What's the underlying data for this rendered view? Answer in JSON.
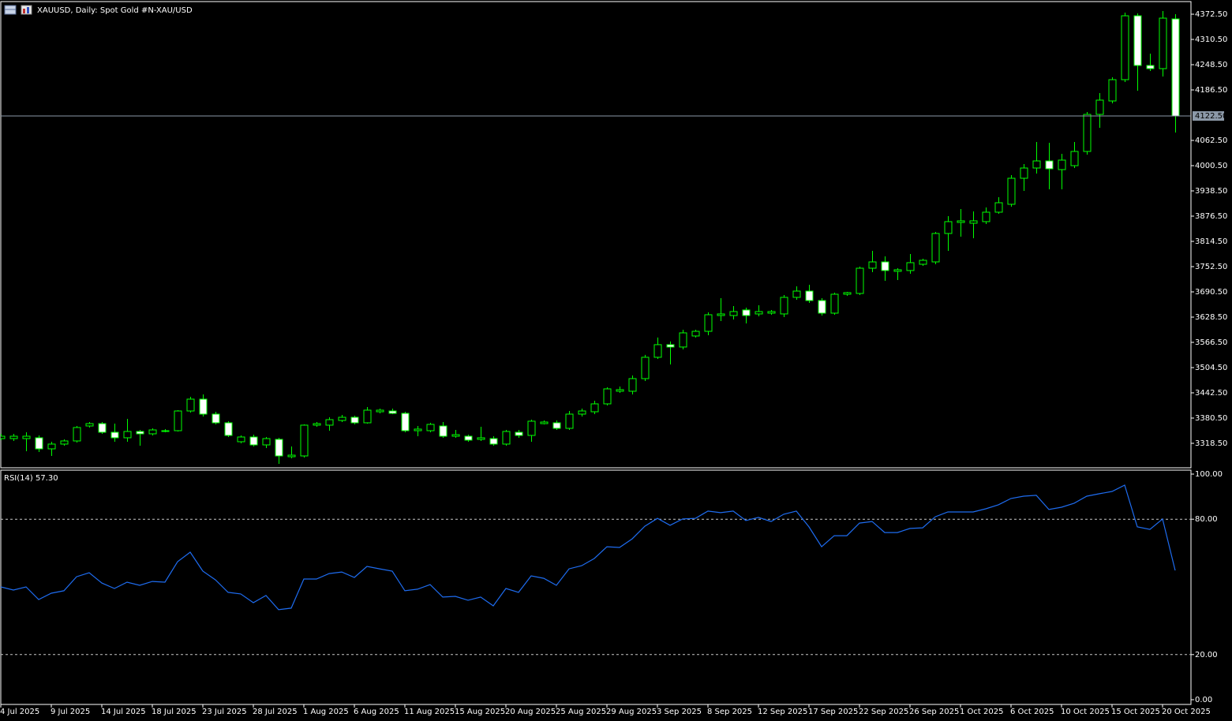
{
  "chart_data": [
    {
      "type": "candlestick",
      "title": "XAUUSD, Daily:  Spot Gold #N-XAU/USD",
      "categories": [
        "4 Jul 2025",
        null,
        null,
        null,
        "9 Jul 2025",
        null,
        null,
        null,
        "14 Jul 2025",
        null,
        null,
        null,
        "18 Jul 2025",
        null,
        null,
        null,
        "23 Jul 2025",
        null,
        null,
        null,
        "28 Jul 2025",
        null,
        null,
        null,
        "1 Aug 2025",
        null,
        null,
        null,
        "6 Aug 2025",
        null,
        null,
        null,
        "11 Aug 2025",
        null,
        null,
        null,
        "15 Aug 2025",
        null,
        null,
        null,
        "20 Aug 2025",
        null,
        null,
        null,
        "25 Aug 2025",
        null,
        null,
        null,
        "29 Aug 2025",
        null,
        null,
        null,
        "3 Sep 2025",
        null,
        null,
        null,
        "8 Sep 2025",
        null,
        null,
        null,
        "12 Sep 2025",
        null,
        null,
        null,
        "17 Sep 2025",
        null,
        null,
        null,
        "22 Sep 2025",
        null,
        null,
        null,
        "26 Sep 2025",
        null,
        null,
        null,
        "1 Oct 2025",
        null,
        null,
        null,
        "6 Oct 2025",
        null,
        null,
        null,
        "10 Oct 2025",
        null,
        null,
        null,
        "15 Oct 2025",
        null,
        null,
        null,
        "20 Oct 2025",
        null
      ],
      "open": [
        3330.1,
        3330.1,
        3330.1,
        3332.1,
        3304.9,
        3316.6,
        3324.3,
        3361.1,
        3366.9,
        3345.6,
        3332.1,
        3347.6,
        3341.8,
        3347.6,
        3349.5,
        3397.9,
        3427.0,
        3390.2,
        3368.9,
        3322.4,
        3334.0,
        3314.6,
        3328.2,
        3285.6,
        3287.5,
        3363.1,
        3363.1,
        3374.7,
        3382.4,
        3368.9,
        3396.0,
        3397.9,
        3392.1,
        3349.5,
        3349.5,
        3361.1,
        3335.9,
        3335.9,
        3328.2,
        3330.1,
        3316.6,
        3345.6,
        3337.9,
        3366.9,
        3368.9,
        3355.3,
        3390.2,
        3396.0,
        3415.4,
        3446.4,
        3446.4,
        3477.4,
        3529.8,
        3560.8,
        3555.0,
        3582.1,
        3593.6,
        3632.4,
        3632.4,
        3646.0,
        3636.3,
        3638.2,
        3636.3,
        3677.0,
        3692.4,
        3669.2,
        3638.2,
        3684.7,
        3686.6,
        3748.6,
        3764.1,
        3740.9,
        3742.9,
        3758.3,
        3764.1,
        3833.9,
        3861.0,
        3859.1,
        3863.0,
        3886.2,
        3905.6,
        3969.5,
        3994.7,
        4012.1,
        3990.8,
        4000.5,
        4035.4,
        4126.4,
        4159.4,
        4211.7,
        4368.6,
        4246.6,
        4238.8,
        4360.9
      ],
      "high": [
        3341.8,
        3341.8,
        3345.6,
        3337.9,
        3322.4,
        3328.2,
        3361.1,
        3370.8,
        3370.8,
        3366.9,
        3378.6,
        3351.4,
        3355.3,
        3353.4,
        3399.9,
        3432.8,
        3438.6,
        3396.0,
        3372.8,
        3337.9,
        3339.8,
        3334.0,
        3332.1,
        3310.8,
        3365.0,
        3370.8,
        3382.4,
        3388.3,
        3386.3,
        3407.6,
        3403.8,
        3403.8,
        3396.0,
        3361.1,
        3368.9,
        3370.8,
        3351.4,
        3339.8,
        3359.2,
        3335.9,
        3351.4,
        3351.4,
        3376.6,
        3374.7,
        3374.7,
        3397.9,
        3403.8,
        3423.1,
        3456.1,
        3458.0,
        3485.1,
        3535.6,
        3578.3,
        3568.6,
        3597.5,
        3597.5,
        3640.1,
        3675.0,
        3655.6,
        3651.8,
        3657.6,
        3646.0,
        3682.8,
        3704.1,
        3708.0,
        3675.0,
        3688.6,
        3690.5,
        3752.5,
        3791.3,
        3777.7,
        3748.6,
        3783.5,
        3771.9,
        3837.8,
        3876.5,
        3894.0,
        3888.1,
        3897.8,
        3923.0,
        3977.3,
        4004.4,
        4058.6,
        4056.7,
        4029.6,
        4058.6,
        4132.3,
        4178.8,
        4217.6,
        4376.4,
        4374.4,
        4275.6,
        4380.3,
        4372.5
      ],
      "low": [
        3326.3,
        3324.3,
        3299.1,
        3297.2,
        3287.5,
        3312.7,
        3320.4,
        3357.3,
        3341.8,
        3322.4,
        3322.4,
        3312.7,
        3337.9,
        3345.6,
        3347.6,
        3394.1,
        3384.4,
        3365.0,
        3334.0,
        3318.5,
        3310.8,
        3306.9,
        3268.1,
        3281.7,
        3283.6,
        3359.2,
        3349.5,
        3370.8,
        3365.0,
        3366.9,
        3392.1,
        3390.2,
        3345.6,
        3335.9,
        3345.6,
        3332.1,
        3332.1,
        3322.4,
        3324.3,
        3312.7,
        3312.7,
        3332.1,
        3322.4,
        3365.0,
        3351.4,
        3351.4,
        3384.4,
        3390.2,
        3411.5,
        3442.5,
        3438.6,
        3471.6,
        3525.9,
        3512.3,
        3549.2,
        3578.3,
        3584.0,
        3618.8,
        3622.7,
        3613.0,
        3630.4,
        3634.3,
        3628.5,
        3671.1,
        3663.4,
        3632.4,
        3634.3,
        3680.8,
        3682.8,
        3739.0,
        3717.6,
        3719.6,
        3735.1,
        3754.4,
        3758.3,
        3791.3,
        3826.1,
        3822.3,
        3857.1,
        3882.3,
        3899.8,
        3938.5,
        3981.1,
        3942.4,
        3942.4,
        3994.7,
        4027.6,
        4093.5,
        4153.6,
        4205.9,
        4184.6,
        4233.0,
        4219.4,
        4081.9
      ],
      "close": [
        3335.9,
        3335.9,
        3335.9,
        3304.9,
        3316.6,
        3324.3,
        3357.3,
        3366.9,
        3345.6,
        3332.1,
        3347.6,
        3341.8,
        3351.4,
        3349.5,
        3397.9,
        3427.0,
        3390.2,
        3368.9,
        3337.9,
        3334.0,
        3314.6,
        3330.1,
        3287.5,
        3289.4,
        3363.1,
        3366.9,
        3376.6,
        3382.4,
        3368.9,
        3399.9,
        3399.9,
        3392.1,
        3349.5,
        3353.4,
        3365.0,
        3335.9,
        3339.8,
        3326.3,
        3332.1,
        3316.6,
        3347.6,
        3337.9,
        3372.8,
        3370.8,
        3355.3,
        3390.2,
        3397.9,
        3415.4,
        3452.2,
        3450.3,
        3477.4,
        3529.8,
        3560.8,
        3555.0,
        3589.8,
        3593.6,
        3634.3,
        3636.3,
        3642.1,
        3632.4,
        3642.1,
        3642.1,
        3677.0,
        3692.4,
        3669.2,
        3638.2,
        3684.7,
        3688.6,
        3748.6,
        3764.1,
        3742.9,
        3744.8,
        3762.2,
        3768.0,
        3833.9,
        3863.0,
        3864.9,
        3864.9,
        3886.2,
        3909.4,
        3969.5,
        3994.7,
        4012.1,
        3992.8,
        4014.1,
        4035.4,
        4126.4,
        4161.4,
        4211.7,
        4368.6,
        4246.6,
        4238.8,
        4362.8,
        4122.5
      ],
      "ylim": [
        3258.4,
        4403.5
      ],
      "yticks": [
        {
          "value": 3318.5,
          "label": "3318.50"
        },
        {
          "value": 3380.5,
          "label": "3380.50"
        },
        {
          "value": 3442.5,
          "label": "3442.50"
        },
        {
          "value": 3504.5,
          "label": "3504.50"
        },
        {
          "value": 3566.5,
          "label": "3566.50"
        },
        {
          "value": 3628.5,
          "label": "3628.50"
        },
        {
          "value": 3690.5,
          "label": "3690.50"
        },
        {
          "value": 3752.5,
          "label": "3752.50"
        },
        {
          "value": 3814.5,
          "label": "3814.50"
        },
        {
          "value": 3876.5,
          "label": "3876.50"
        },
        {
          "value": 3938.5,
          "label": "3938.50"
        },
        {
          "value": 4000.5,
          "label": "4000.50"
        },
        {
          "value": 4062.5,
          "label": "4062.50"
        },
        {
          "value": 4186.5,
          "label": "4186.50"
        },
        {
          "value": 4248.5,
          "label": "4248.50"
        },
        {
          "value": 4310.5,
          "label": "4310.50"
        },
        {
          "value": 4372.5,
          "label": "4372.50"
        }
      ],
      "last_price": {
        "value": 4122.5,
        "label": "4122.50"
      },
      "up_color": "#00ff00",
      "down_color": "#ffffff"
    },
    {
      "type": "line",
      "title": "RSI(14) 57.30",
      "values": [
        50.0,
        48.6,
        50.0,
        44.4,
        47.2,
        48.3,
        54.5,
        56.3,
        51.7,
        49.3,
        52.1,
        50.7,
        52.4,
        52.1,
        61.2,
        65.4,
        57.0,
        53.1,
        47.6,
        46.9,
        43.0,
        46.2,
        39.9,
        40.6,
        53.5,
        53.5,
        55.9,
        56.6,
        54.2,
        59.1,
        58.0,
        57.0,
        48.3,
        49.0,
        51.0,
        45.5,
        45.8,
        44.1,
        45.5,
        41.6,
        49.3,
        47.6,
        54.9,
        53.8,
        50.7,
        58.0,
        59.4,
        62.6,
        67.8,
        67.5,
        71.3,
        76.9,
        80.4,
        77.3,
        80.1,
        80.4,
        83.6,
        82.9,
        83.6,
        79.4,
        80.8,
        79.0,
        82.2,
        83.6,
        76.6,
        67.8,
        72.7,
        72.7,
        78.3,
        79.0,
        74.1,
        74.1,
        75.9,
        76.2,
        81.1,
        83.2,
        83.2,
        83.2,
        84.6,
        86.4,
        89.2,
        90.2,
        90.6,
        84.3,
        85.3,
        87.1,
        90.2,
        91.3,
        92.3,
        95.1,
        76.6,
        75.5,
        80.1,
        57.3
      ],
      "color": "#1e6cf0",
      "ylim": [
        0,
        100
      ],
      "yticks": [
        {
          "value": 0,
          "label": "0.00"
        },
        {
          "value": 20,
          "label": "20.00"
        },
        {
          "value": 80,
          "label": "80.00"
        },
        {
          "value": 100,
          "label": "100.00"
        }
      ],
      "levels": [
        20,
        80
      ]
    }
  ]
}
